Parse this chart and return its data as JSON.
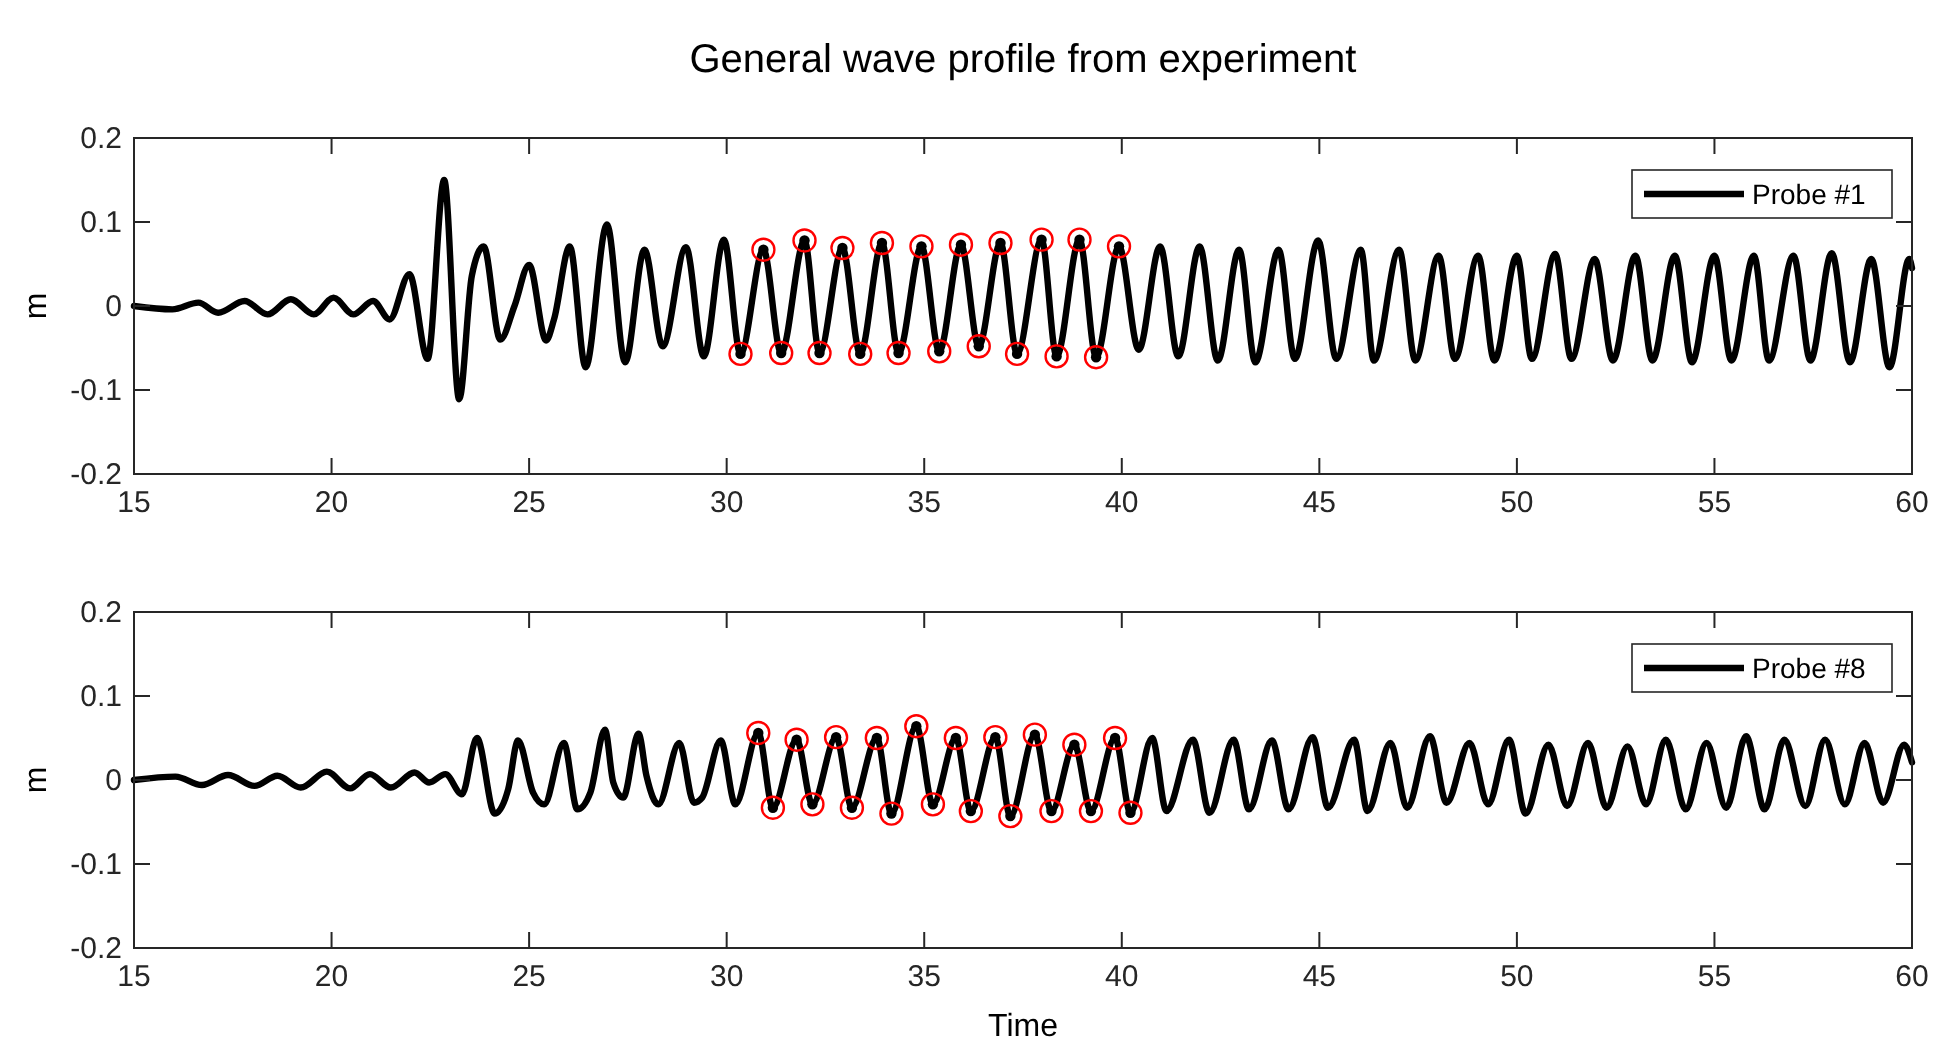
{
  "chart_data": [
    {
      "type": "line",
      "title": "General wave profile from experiment",
      "ylabel": "m",
      "xlim": [
        15,
        60
      ],
      "xticks": [
        15,
        20,
        25,
        30,
        35,
        40,
        45,
        50,
        55,
        60
      ],
      "ylim": [
        -0.2,
        0.2
      ],
      "yticks": [
        -0.2,
        -0.1,
        0,
        0.1,
        0.2
      ],
      "legend": "top right",
      "series": [
        {
          "name": "Probe #1",
          "color": "#000000",
          "x": [
            15,
            15.97,
            16.63,
            17.13,
            17.8,
            18.38,
            18.97,
            19.55,
            20.05,
            20.55,
            21.05,
            21.47,
            21.97,
            22.43,
            22.85,
            23.23,
            23.55,
            23.85,
            24.27,
            24.63,
            25.0,
            25.43,
            25.63,
            26.03,
            26.43,
            26.97,
            27.43,
            27.92,
            28.38,
            28.97,
            29.42,
            29.93,
            30.35,
            30.93,
            31.38,
            31.97,
            32.35,
            32.93,
            33.38,
            33.93,
            34.35,
            34.93,
            35.38,
            35.93,
            36.38,
            36.93,
            37.35,
            37.97,
            38.35,
            38.93,
            39.35,
            39.93,
            40.43,
            40.97,
            41.43,
            41.97,
            42.43,
            42.97,
            43.38,
            43.97,
            44.38,
            44.97,
            45.43,
            46.05,
            46.38,
            47.02,
            47.43,
            48.02,
            48.43,
            49.02,
            49.43,
            50.0,
            50.38,
            50.97,
            51.38,
            51.97,
            52.43,
            53.0,
            53.43,
            54.0,
            54.43,
            55.0,
            55.43,
            56.0,
            56.38,
            57.0,
            57.43,
            57.97,
            58.43,
            58.97,
            59.43,
            59.93,
            60
          ],
          "values": [
            0,
            -0.004,
            0.004,
            -0.008,
            0.006,
            -0.01,
            0.008,
            -0.01,
            0.01,
            -0.01,
            0.006,
            -0.016,
            0.038,
            -0.063,
            0.15,
            -0.111,
            0.036,
            0.071,
            -0.04,
            0,
            0.049,
            -0.041,
            -0.016,
            0.071,
            -0.073,
            0.097,
            -0.067,
            0.067,
            -0.048,
            0.07,
            -0.06,
            0.079,
            -0.057,
            0.067,
            -0.056,
            0.078,
            -0.056,
            0.069,
            -0.057,
            0.075,
            -0.056,
            0.071,
            -0.054,
            0.073,
            -0.048,
            0.075,
            -0.057,
            0.079,
            -0.06,
            0.079,
            -0.061,
            0.071,
            -0.052,
            0.071,
            -0.06,
            0.071,
            -0.065,
            0.067,
            -0.067,
            0.067,
            -0.063,
            0.078,
            -0.063,
            0.067,
            -0.065,
            0.067,
            -0.065,
            0.06,
            -0.063,
            0.06,
            -0.065,
            0.06,
            -0.063,
            0.062,
            -0.063,
            0.056,
            -0.065,
            0.06,
            -0.065,
            0.06,
            -0.067,
            0.06,
            -0.065,
            0.06,
            -0.065,
            0.06,
            -0.065,
            0.063,
            -0.067,
            0.056,
            -0.073,
            0.056,
            0.045
          ]
        },
        {
          "type": "scatter",
          "color": "#ff0000",
          "marker": "circle",
          "x": [
            30.35,
            30.93,
            31.38,
            31.97,
            32.35,
            32.93,
            33.38,
            33.93,
            34.35,
            34.93,
            35.38,
            35.93,
            36.38,
            36.93,
            37.35,
            37.97,
            38.35,
            38.93,
            39.35,
            39.93
          ],
          "values": [
            -0.057,
            0.067,
            -0.056,
            0.078,
            -0.056,
            0.069,
            -0.057,
            0.075,
            -0.056,
            0.071,
            -0.054,
            0.073,
            -0.048,
            0.075,
            -0.057,
            0.079,
            -0.06,
            0.079,
            -0.061,
            0.071
          ]
        }
      ]
    },
    {
      "type": "line",
      "xlabel": "Time",
      "ylabel": "m",
      "xlim": [
        15,
        60
      ],
      "xticks": [
        15,
        20,
        25,
        30,
        35,
        40,
        45,
        50,
        55,
        60
      ],
      "ylim": [
        -0.2,
        0.2
      ],
      "yticks": [
        -0.2,
        -0.1,
        0,
        0.1,
        0.2
      ],
      "legend": "top right",
      "series": [
        {
          "name": "Probe #8",
          "color": "#000000",
          "x": [
            15,
            16.05,
            16.72,
            17.38,
            18.05,
            18.63,
            19.22,
            19.88,
            20.47,
            20.97,
            21.5,
            22.1,
            22.47,
            22.88,
            23.3,
            23.68,
            24.13,
            24.47,
            24.72,
            25.1,
            25.38,
            25.88,
            26.22,
            26.55,
            26.92,
            27.13,
            27.38,
            27.77,
            27.97,
            28.27,
            28.8,
            29.17,
            29.38,
            29.85,
            30.22,
            30.8,
            31.17,
            31.77,
            32.17,
            32.77,
            33.17,
            33.8,
            34.17,
            34.8,
            35.22,
            35.8,
            36.18,
            36.8,
            37.18,
            37.8,
            38.22,
            38.8,
            39.22,
            39.83,
            40.22,
            40.77,
            41.13,
            41.8,
            42.22,
            42.83,
            43.22,
            43.8,
            44.22,
            44.83,
            45.22,
            45.88,
            46.22,
            46.8,
            47.22,
            47.8,
            48.22,
            48.8,
            49.27,
            49.8,
            50.22,
            50.8,
            51.27,
            51.8,
            52.27,
            52.8,
            53.27,
            53.77,
            54.27,
            54.8,
            55.3,
            55.8,
            56.27,
            56.77,
            57.3,
            57.8,
            58.3,
            58.8,
            59.27,
            59.8,
            60
          ],
          "values": [
            0,
            0.004,
            -0.006,
            0.006,
            -0.007,
            0.005,
            -0.009,
            0.01,
            -0.01,
            0.007,
            -0.009,
            0.009,
            -0.003,
            0.007,
            -0.017,
            0.05,
            -0.04,
            -0.011,
            0.047,
            -0.015,
            -0.029,
            0.044,
            -0.035,
            -0.015,
            0.06,
            -0.003,
            -0.021,
            0.055,
            0.005,
            -0.029,
            0.044,
            -0.027,
            -0.021,
            0.047,
            -0.029,
            0.056,
            -0.033,
            0.048,
            -0.029,
            0.051,
            -0.033,
            0.05,
            -0.04,
            0.064,
            -0.029,
            0.05,
            -0.037,
            0.051,
            -0.043,
            0.054,
            -0.037,
            0.042,
            -0.037,
            0.05,
            -0.039,
            0.05,
            -0.037,
            0.048,
            -0.039,
            0.048,
            -0.035,
            0.047,
            -0.035,
            0.051,
            -0.033,
            0.048,
            -0.037,
            0.044,
            -0.033,
            0.052,
            -0.027,
            0.044,
            -0.029,
            0.048,
            -0.04,
            0.042,
            -0.031,
            0.044,
            -0.033,
            0.04,
            -0.029,
            0.048,
            -0.035,
            0.044,
            -0.033,
            0.052,
            -0.035,
            0.048,
            -0.031,
            0.048,
            -0.029,
            0.044,
            -0.027,
            0.042,
            0.021
          ]
        },
        {
          "type": "scatter",
          "color": "#ff0000",
          "marker": "circle",
          "x": [
            30.8,
            31.17,
            31.77,
            32.17,
            32.77,
            33.17,
            33.8,
            34.17,
            34.8,
            35.22,
            35.8,
            36.18,
            36.8,
            37.18,
            37.8,
            38.22,
            38.8,
            39.22,
            39.83,
            40.22
          ],
          "values": [
            0.056,
            -0.033,
            0.048,
            -0.029,
            0.051,
            -0.033,
            0.05,
            -0.04,
            0.064,
            -0.029,
            0.05,
            -0.037,
            0.051,
            -0.043,
            0.054,
            -0.037,
            0.042,
            -0.037,
            0.05,
            -0.039
          ]
        }
      ]
    }
  ]
}
